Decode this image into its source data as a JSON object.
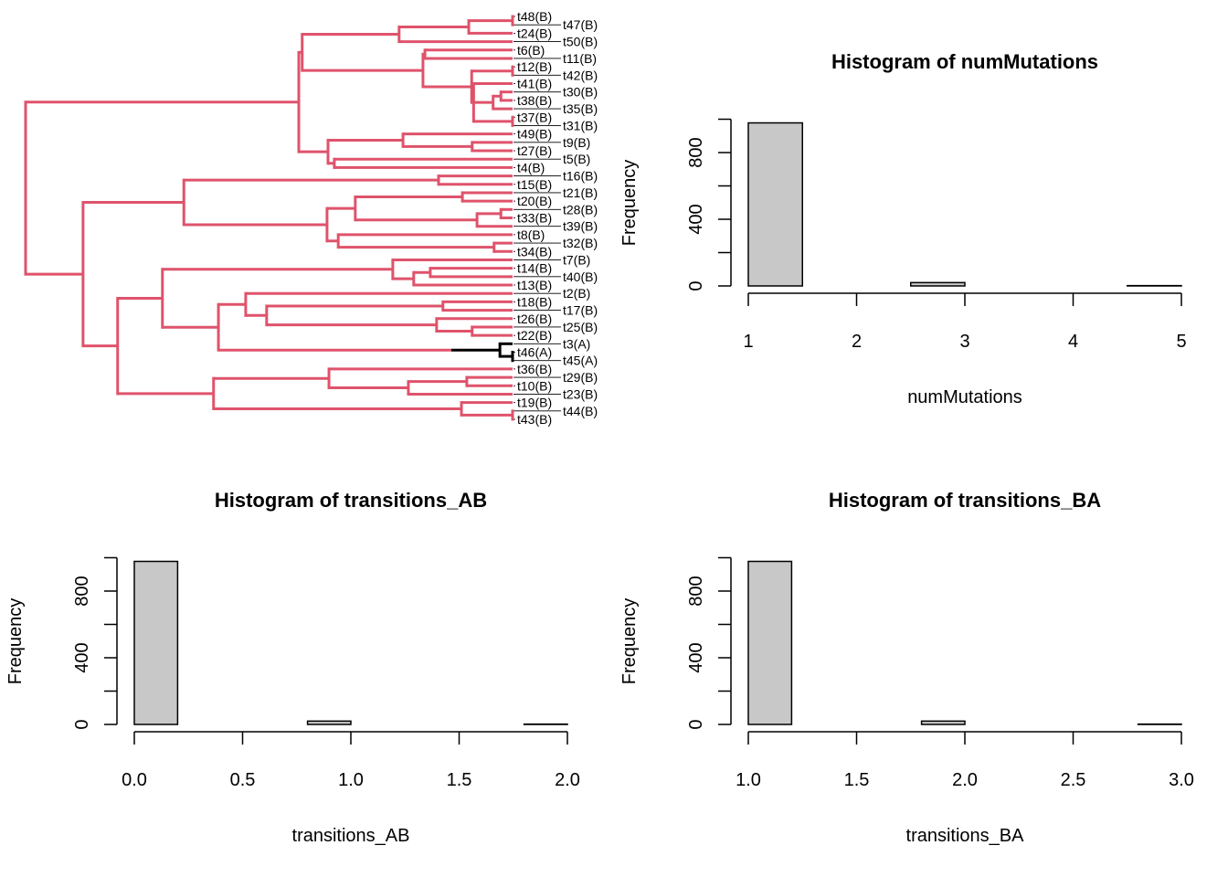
{
  "colors": {
    "state_B": "#DF536B",
    "state_A": "#000000",
    "bar_fill": "#C8C8C8",
    "bar_stroke": "#000000"
  },
  "tree": {
    "tips": [
      "t48(B)",
      "t47(B)",
      "t24(B)",
      "t50(B)",
      "t6(B)",
      "t11(B)",
      "t12(B)",
      "t42(B)",
      "t41(B)",
      "t30(B)",
      "t38(B)",
      "t35(B)",
      "t37(B)",
      "t31(B)",
      "t49(B)",
      "t9(B)",
      "t27(B)",
      "t5(B)",
      "t4(B)",
      "t16(B)",
      "t15(B)",
      "t21(B)",
      "t20(B)",
      "t28(B)",
      "t33(B)",
      "t39(B)",
      "t8(B)",
      "t32(B)",
      "t34(B)",
      "t7(B)",
      "t14(B)",
      "t40(B)",
      "t13(B)",
      "t2(B)",
      "t18(B)",
      "t17(B)",
      "t26(B)",
      "t25(B)",
      "t22(B)",
      "t3(A)",
      "t46(A)",
      "t45(A)",
      "t36(B)",
      "t29(B)",
      "t10(B)",
      "t23(B)",
      "t19(B)",
      "t44(B)",
      "t43(B)"
    ],
    "root": {
      "d": 0,
      "c": [
        {
          "d": 0.561,
          "c": [
            {
              "d": 0.568,
              "c": [
                {
                  "d": 0.767,
                  "c": [
                    {
                      "d": 0.91,
                      "c": [
                        {
                          "d": 1,
                          "c": [
                            0,
                            1
                          ]
                        },
                        2
                      ]
                    },
                    3
                  ]
                },
                {
                  "d": 0.816,
                  "c": [
                    {
                      "d": 0.82,
                      "c": [
                        4,
                        5
                      ]
                    },
                    {
                      "d": 0.916,
                      "c": [
                        {
                          "d": 1,
                          "c": [
                            6,
                            7
                          ]
                        },
                        {
                          "d": 0.92,
                          "c": [
                            8,
                            {
                              "d": 0.96,
                              "c": [
                                {
                                  "d": 0.976,
                                  "c": [
                                    9,
                                    10
                                  ]
                                },
                                11
                              ]
                            },
                            {
                              "d": 1,
                              "c": [
                                12,
                                13
                              ]
                            }
                          ]
                        }
                      ]
                    }
                  ]
                }
              ]
            },
            {
              "d": 0.621,
              "c": [
                {
                  "d": 0.775,
                  "c": [
                    14,
                    {
                      "d": 0.917,
                      "c": [
                        15,
                        16
                      ]
                    }
                  ]
                },
                {
                  "d": 0.634,
                  "c": [
                    17,
                    18
                  ]
                }
              ]
            }
          ]
        },
        {
          "d": 0.118,
          "c": [
            {
              "d": 0.325,
              "c": [
                {
                  "d": 0.848,
                  "c": [
                    19,
                    20
                  ]
                },
                {
                  "d": 0.619,
                  "c": [
                    {
                      "d": 0.677,
                      "c": [
                        {
                          "d": 0.897,
                          "c": [
                            21,
                            22
                          ]
                        },
                        {
                          "d": 0.927,
                          "c": [
                            {
                              "d": 0.976,
                              "c": [
                                23,
                                24
                              ]
                            },
                            25
                          ]
                        }
                      ]
                    },
                    {
                      "d": 0.642,
                      "c": [
                        26,
                        {
                          "d": 0.962,
                          "c": [
                            27,
                            28
                          ]
                        }
                      ]
                    }
                  ]
                }
              ]
            },
            {
              "d": 0.189,
              "c": [
                {
                  "d": 0.281,
                  "c": [
                    {
                      "d": 0.754,
                      "c": [
                        29,
                        {
                          "d": 0.797,
                          "c": [
                            {
                              "d": 0.831,
                              "c": [
                                30,
                                31
                              ]
                            },
                            32
                          ]
                        }
                      ]
                    },
                    {
                      "d": 0.396,
                      "c": [
                        {
                          "d": 0.452,
                          "c": [
                            33,
                            {
                              "d": 0.495,
                              "c": [
                                {
                                  "d": 0.857,
                                  "c": [
                                    34,
                                    35
                                  ]
                                },
                                {
                                  "d": 0.844,
                                  "c": [
                                    36,
                                    {
                                      "d": 0.917,
                                      "c": [
                                        37,
                                        38
                                      ]
                                    }
                                  ]
                                }
                              ]
                            }
                          ]
                        },
                        {
                          "d": 0.974,
                          "state": "A",
                          "switch": 0.874,
                          "c": [
                            39,
                            {
                              "d": 1,
                              "c": [
                                40,
                                41
                              ]
                            }
                          ]
                        }
                      ]
                    }
                  ]
                },
                {
                  "d": 0.386,
                  "c": [
                    {
                      "d": 0.623,
                      "c": [
                        42,
                        {
                          "d": 0.786,
                          "c": [
                            {
                              "d": 0.906,
                              "c": [
                                43,
                                44
                              ]
                            },
                            45
                          ]
                        }
                      ]
                    },
                    {
                      "d": 0.895,
                      "c": [
                        46,
                        {
                          "d": 1,
                          "c": [
                            47,
                            48
                          ]
                        }
                      ]
                    }
                  ]
                }
              ]
            }
          ]
        }
      ]
    }
  },
  "chart_data": [
    {
      "type": "bar",
      "title": "Histogram of numMutations",
      "xlabel": "numMutations",
      "ylabel": "Frequency",
      "breaks": [
        1,
        1.5,
        2,
        2.5,
        3,
        3.5,
        4,
        4.5,
        5
      ],
      "counts": [
        978,
        0,
        0,
        20,
        0,
        0,
        0,
        2
      ],
      "xticks": [
        1,
        2,
        3,
        4,
        5
      ],
      "xtick_labels": [
        "1",
        "2",
        "3",
        "4",
        "5"
      ],
      "yticks": [
        0,
        200,
        400,
        600,
        800,
        1000
      ],
      "ytick_labels": [
        "0",
        "",
        "400",
        "",
        "800",
        ""
      ],
      "xlim": [
        1,
        5
      ],
      "ylim": [
        0,
        1000
      ]
    },
    {
      "type": "bar",
      "title": "Histogram of transitions_AB",
      "xlabel": "transitions_AB",
      "ylabel": "Frequency",
      "breaks": [
        0,
        0.2,
        0.4,
        0.6,
        0.8,
        1.0,
        1.2,
        1.4,
        1.6,
        1.8,
        2.0
      ],
      "counts": [
        978,
        0,
        0,
        0,
        20,
        0,
        0,
        0,
        0,
        2
      ],
      "xticks": [
        0,
        0.5,
        1,
        1.5,
        2
      ],
      "xtick_labels": [
        "0.0",
        "0.5",
        "1.0",
        "1.5",
        "2.0"
      ],
      "yticks": [
        0,
        200,
        400,
        600,
        800,
        1000
      ],
      "ytick_labels": [
        "0",
        "",
        "400",
        "",
        "800",
        ""
      ],
      "xlim": [
        0,
        2
      ],
      "ylim": [
        0,
        1000
      ]
    },
    {
      "type": "bar",
      "title": "Histogram of transitions_BA",
      "xlabel": "transitions_BA",
      "ylabel": "Frequency",
      "breaks": [
        1.0,
        1.2,
        1.4,
        1.6,
        1.8,
        2.0,
        2.2,
        2.4,
        2.6,
        2.8,
        3.0
      ],
      "counts": [
        978,
        0,
        0,
        0,
        20,
        0,
        0,
        0,
        0,
        2
      ],
      "xticks": [
        1,
        1.5,
        2,
        2.5,
        3
      ],
      "xtick_labels": [
        "1.0",
        "1.5",
        "2.0",
        "2.5",
        "3.0"
      ],
      "yticks": [
        0,
        200,
        400,
        600,
        800,
        1000
      ],
      "ytick_labels": [
        "0",
        "",
        "400",
        "",
        "800",
        ""
      ],
      "xlim": [
        1,
        3
      ],
      "ylim": [
        0,
        1000
      ]
    }
  ]
}
